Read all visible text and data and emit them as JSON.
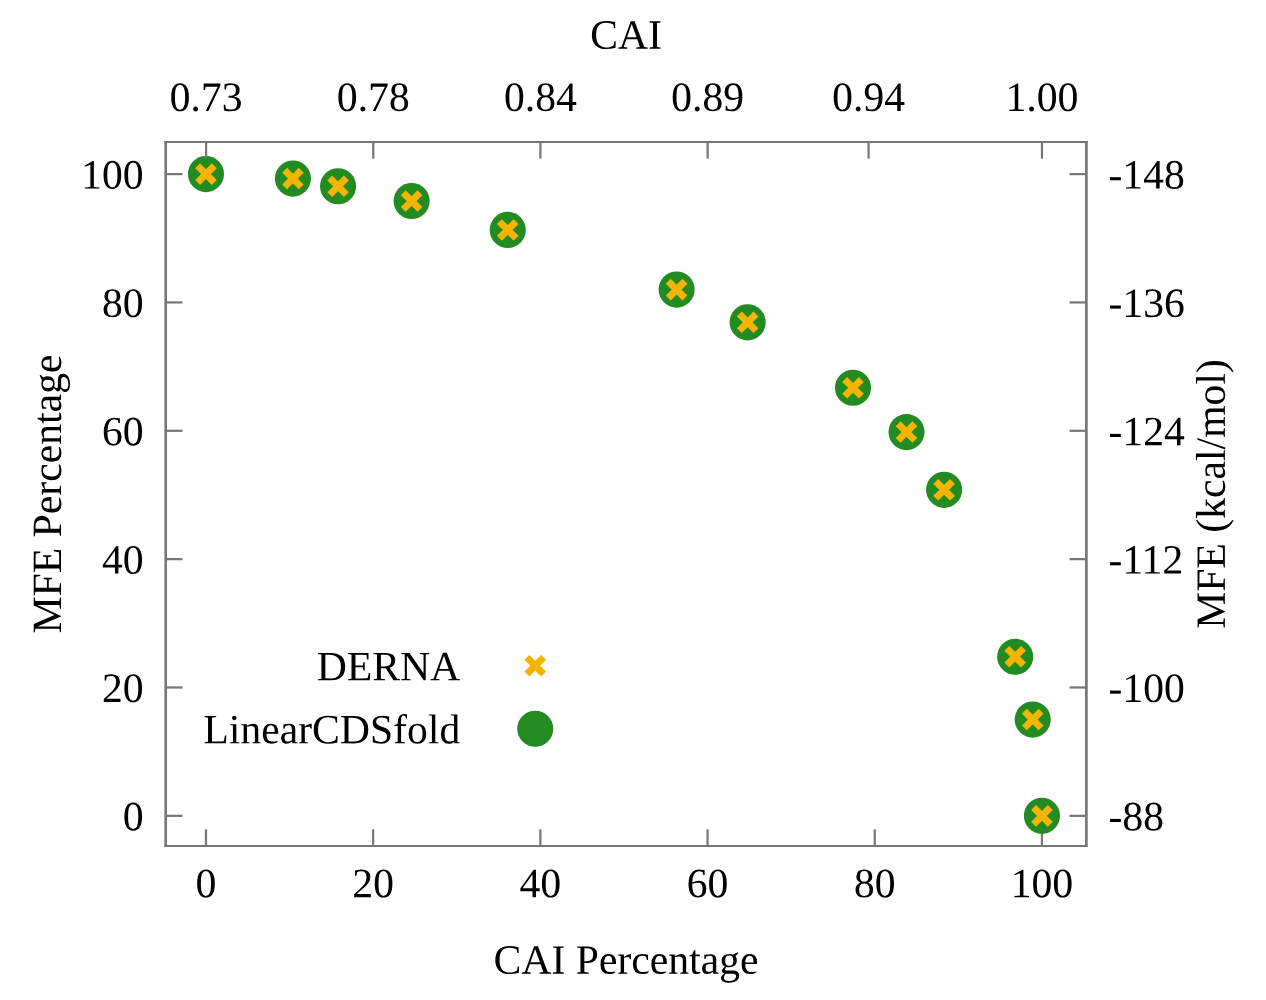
{
  "chart_data": {
    "type": "scatter",
    "xlabel": "CAI Percentage",
    "ylabel": "MFE Percentage",
    "x2label": "CAI",
    "y2label": "MFE (kcal/mol)",
    "x": [
      0,
      10.4,
      15.8,
      24.6,
      36.1,
      56.3,
      64.8,
      77.4,
      83.8,
      88.3,
      96.8,
      98.9,
      100
    ],
    "series": [
      {
        "name": "LinearCDSfold",
        "color": "#228b22",
        "marker": "circle",
        "values": [
          100,
          99.3,
          98.1,
          95.8,
          91.3,
          82.0,
          76.9,
          66.7,
          59.8,
          50.8,
          24.8,
          15.0,
          0
        ]
      },
      {
        "name": "DERNA",
        "color": "#f5b400",
        "marker": "cross",
        "values": [
          100,
          99.3,
          98.1,
          95.8,
          91.3,
          82.0,
          76.9,
          66.7,
          59.8,
          50.8,
          24.8,
          15.0,
          0
        ]
      }
    ],
    "xlim": [
      -4.8,
      105.3
    ],
    "xticks": [
      0,
      20,
      40,
      60,
      80,
      100
    ],
    "ylim": [
      -4.7,
      105
    ],
    "yticks": [
      0,
      20,
      40,
      60,
      80,
      100
    ],
    "x2lim": [
      0.717,
      1.0143
    ],
    "x2ticks": [
      {
        "value": 0.73,
        "label": "0.73"
      },
      {
        "value": 0.784,
        "label": "0.78"
      },
      {
        "value": 0.838,
        "label": "0.84"
      },
      {
        "value": 0.892,
        "label": "0.89"
      },
      {
        "value": 0.944,
        "label": "0.94"
      },
      {
        "value": 1.0,
        "label": "1.00"
      }
    ],
    "y2lim": [
      -85.18,
      -151.0
    ],
    "y2ticks": [
      -148,
      -136,
      -124,
      -112,
      -100,
      -88
    ],
    "legend": "bottom left",
    "grid": false
  }
}
